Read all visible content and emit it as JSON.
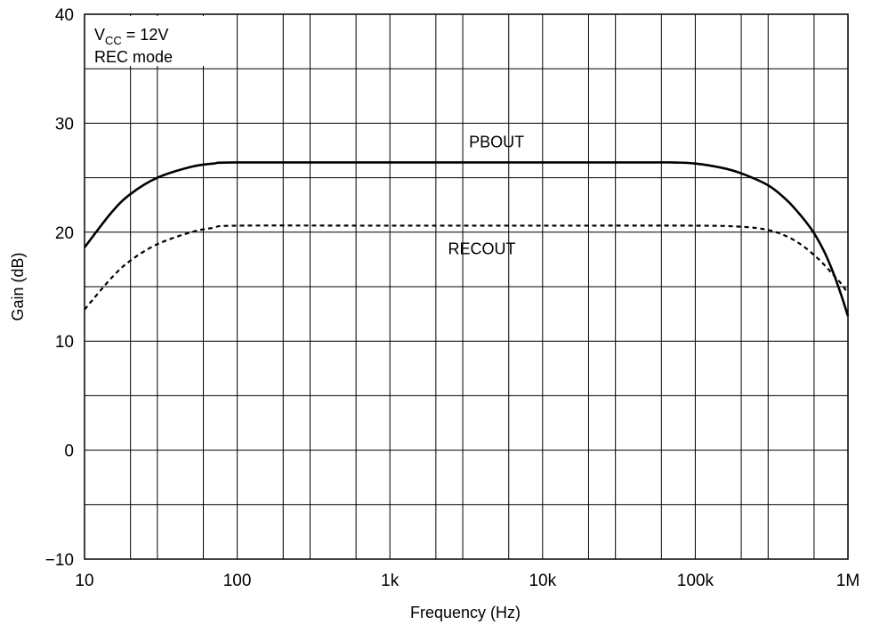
{
  "chart_data": {
    "type": "line",
    "xlabel": "Frequency  (Hz)",
    "ylabel": "Gain  (dB)",
    "x_scale": "log",
    "xlim": [
      10,
      1000000
    ],
    "ylim": [
      -10,
      40
    ],
    "grid": true,
    "x_ticks": [
      10,
      100,
      1000,
      10000,
      100000,
      1000000
    ],
    "x_tick_labels": [
      "10",
      "100",
      "1k",
      "10k",
      "100k",
      "1M"
    ],
    "y_ticks": [
      -10,
      0,
      10,
      20,
      30,
      40
    ],
    "y_tick_labels": [
      "−10",
      "0",
      "10",
      "20",
      "30",
      "40"
    ],
    "annotation": {
      "line1_main": "V",
      "line1_sub": "CC",
      "line1_rest": " = 12V",
      "line2": "REC mode"
    },
    "series": [
      {
        "name": "PBOUT",
        "style": "solid",
        "x": [
          10,
          15,
          20,
          30,
          50,
          70,
          100,
          1000,
          10000,
          50000,
          70000,
          100000,
          150000,
          200000,
          300000,
          400000,
          500000,
          600000,
          700000,
          800000,
          900000,
          1000000
        ],
        "y": [
          18.6,
          21.8,
          23.5,
          25.0,
          26.0,
          26.3,
          26.4,
          26.4,
          26.4,
          26.4,
          26.4,
          26.3,
          25.9,
          25.4,
          24.3,
          22.9,
          21.4,
          19.9,
          18.2,
          16.3,
          14.3,
          12.3
        ]
      },
      {
        "name": "RECOUT",
        "style": "dashed",
        "x": [
          10,
          15,
          20,
          30,
          50,
          70,
          100,
          1000,
          10000,
          100000,
          200000,
          300000,
          400000,
          500000,
          600000,
          700000,
          800000,
          900000,
          1000000
        ],
        "y": [
          12.9,
          15.8,
          17.4,
          18.9,
          20.0,
          20.4,
          20.6,
          20.6,
          20.6,
          20.6,
          20.5,
          20.2,
          19.6,
          18.8,
          17.9,
          17.0,
          16.1,
          15.3,
          14.4
        ]
      }
    ],
    "series_label_anchors": [
      {
        "x": 5000,
        "y": 27.8
      },
      {
        "x": 4000,
        "y": 18.0
      }
    ]
  }
}
